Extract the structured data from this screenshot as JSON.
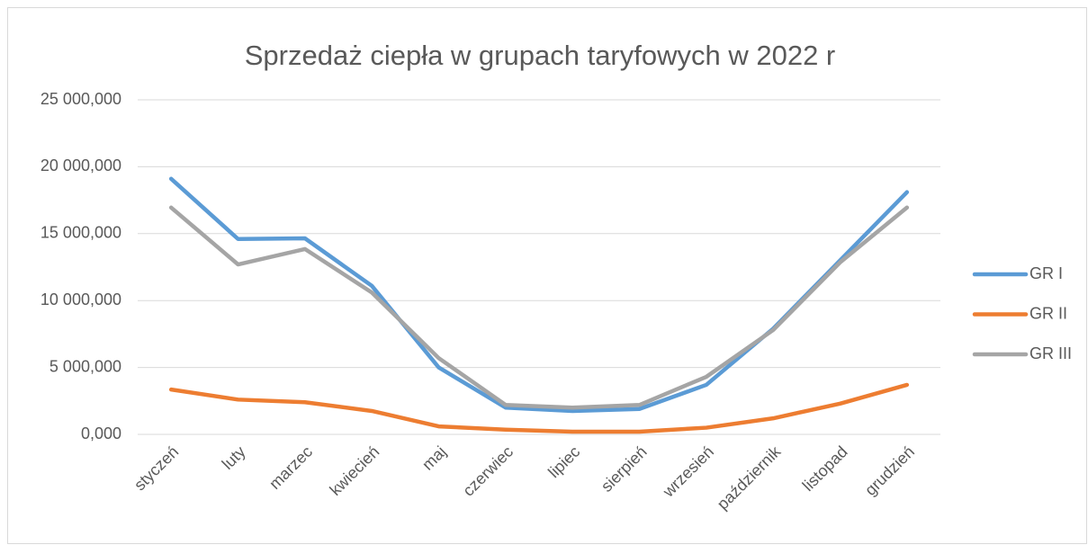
{
  "chart_data": {
    "type": "line",
    "title": "Sprzedaż ciepła w grupach taryfowych w 2022 r",
    "categories": [
      "styczeń",
      "luty",
      "marzec",
      "kwiecień",
      "maj",
      "czerwiec",
      "lipiec",
      "sierpień",
      "wrzesień",
      "październik",
      "listopad",
      "grudzień"
    ],
    "series": [
      {
        "name": "GR I",
        "color": "#5b9bd5",
        "values": [
          19100000,
          14600000,
          14650000,
          11100000,
          5000000,
          2000000,
          1750000,
          1900000,
          3700000,
          7900000,
          13000000,
          18100000
        ]
      },
      {
        "name": "GR II",
        "color": "#ed7d31",
        "values": [
          3350000,
          2600000,
          2400000,
          1750000,
          600000,
          350000,
          200000,
          200000,
          500000,
          1200000,
          2300000,
          3700000
        ]
      },
      {
        "name": "GR III",
        "color": "#a5a5a5",
        "values": [
          16950000,
          12700000,
          13850000,
          10600000,
          5700000,
          2200000,
          2000000,
          2200000,
          4300000,
          7800000,
          12850000,
          16950000
        ]
      }
    ],
    "ylim": [
      0,
      25000000
    ],
    "yticks": [
      {
        "value": 0,
        "label": "0,000"
      },
      {
        "value": 5000000,
        "label": "5 000,000"
      },
      {
        "value": 10000000,
        "label": "10 000,000"
      },
      {
        "value": 15000000,
        "label": "15 000,000"
      },
      {
        "value": 20000000,
        "label": "20 000,000"
      },
      {
        "value": 25000000,
        "label": "25 000,000"
      }
    ],
    "grid": true,
    "legend": "right"
  }
}
